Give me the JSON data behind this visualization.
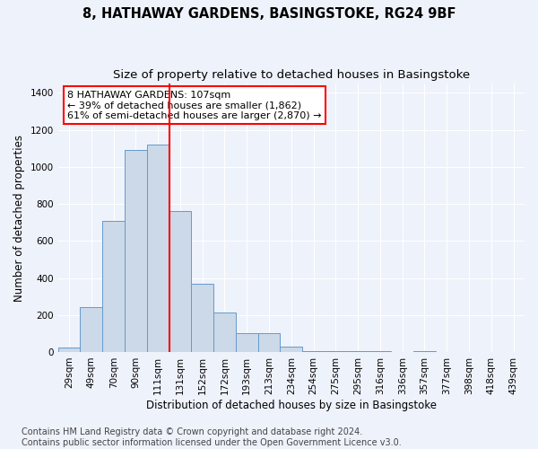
{
  "title": "8, HATHAWAY GARDENS, BASINGSTOKE, RG24 9BF",
  "subtitle": "Size of property relative to detached houses in Basingstoke",
  "xlabel": "Distribution of detached houses by size in Basingstoke",
  "ylabel": "Number of detached properties",
  "bar_color": "#ccd9e8",
  "bar_edge_color": "#6699cc",
  "categories": [
    "29sqm",
    "49sqm",
    "70sqm",
    "90sqm",
    "111sqm",
    "131sqm",
    "152sqm",
    "172sqm",
    "193sqm",
    "213sqm",
    "234sqm",
    "254sqm",
    "275sqm",
    "295sqm",
    "316sqm",
    "336sqm",
    "357sqm",
    "377sqm",
    "398sqm",
    "418sqm",
    "439sqm"
  ],
  "values": [
    25,
    240,
    710,
    1090,
    1120,
    760,
    370,
    215,
    100,
    100,
    30,
    5,
    5,
    5,
    5,
    0,
    5,
    0,
    0,
    0,
    0
  ],
  "ylim": [
    0,
    1450
  ],
  "yticks": [
    0,
    200,
    400,
    600,
    800,
    1000,
    1200,
    1400
  ],
  "vline_color": "red",
  "vline_x": 4.5,
  "annotation_text": "8 HATHAWAY GARDENS: 107sqm\n← 39% of detached houses are smaller (1,862)\n61% of semi-detached houses are larger (2,870) →",
  "annotation_box_color": "white",
  "annotation_box_edge_color": "red",
  "footer_line1": "Contains HM Land Registry data © Crown copyright and database right 2024.",
  "footer_line2": "Contains public sector information licensed under the Open Government Licence v3.0.",
  "background_color": "#eef2fb",
  "plot_background_color": "#eef2fb",
  "grid_color": "white",
  "title_fontsize": 10.5,
  "subtitle_fontsize": 9.5,
  "axis_label_fontsize": 8.5,
  "tick_fontsize": 7.5,
  "footer_fontsize": 7,
  "annotation_fontsize": 8
}
